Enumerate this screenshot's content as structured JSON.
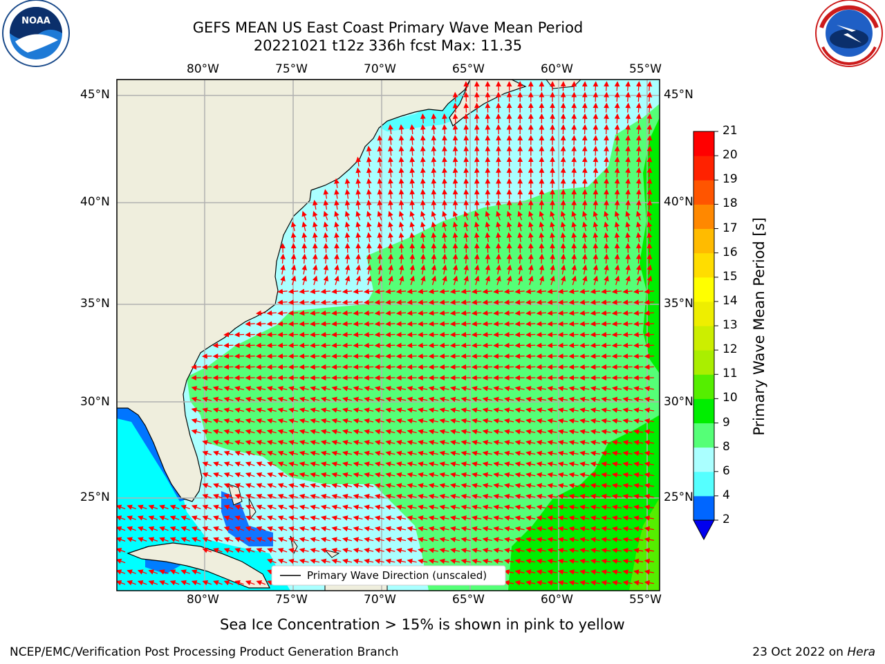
{
  "header": {
    "title_line1": "GEFS MEAN US East Coast Primary Wave Mean Period",
    "title_line2": "20221021 t12z 336h fcst   Max: 11.35"
  },
  "map": {
    "lon_labels": [
      "80°W",
      "75°W",
      "70°W",
      "65°W",
      "60°W",
      "55°W"
    ],
    "lat_labels": [
      "45°N",
      "40°N",
      "35°N",
      "30°N",
      "25°N"
    ],
    "legend_label": "Primary Wave Direction (unscaled)",
    "colors": {
      "land": "#efeedd",
      "ocean_light": "#aaffff",
      "ocean_mid": "#55ffff",
      "ocean_green": "#55ff77",
      "ocean_dark_green": "#00ee00",
      "arrow": "#ff0000",
      "grid": "#b0b0b0"
    }
  },
  "colorbar": {
    "label": "Primary Wave Mean Period [s]",
    "ticks": [
      "2",
      "4",
      "6",
      "8",
      "9",
      "10",
      "11",
      "12",
      "13",
      "14",
      "15",
      "16",
      "17",
      "18",
      "19",
      "20",
      "21"
    ],
    "colors": [
      "#0066ff",
      "#00ddff",
      "#55ffff",
      "#aaffff",
      "#55ff77",
      "#00ee00",
      "#55ee00",
      "#aaee00",
      "#ccee00",
      "#eeee00",
      "#ffff00",
      "#ffdd00",
      "#ffbb00",
      "#ff8800",
      "#ff5500",
      "#ff2200",
      "#ff0000"
    ],
    "under_color": "#0000ee"
  },
  "footer": {
    "ice_note": "Sea Ice Concentration > 15% is shown in pink to yellow",
    "credit": "NCEP/EMC/Verification Post Processing Product Generation Branch",
    "date": "23 Oct 2022 on",
    "machine": "Hera"
  },
  "logos": {
    "noaa_text": "NOAA",
    "noaa_ring": "NATIONAL OCEANIC AND ATMOSPHERIC ADMINISTRATION · U.S. DEPARTMENT OF COMMERCE",
    "nws_ring": "NATIONAL WEATHER SERVICE"
  }
}
